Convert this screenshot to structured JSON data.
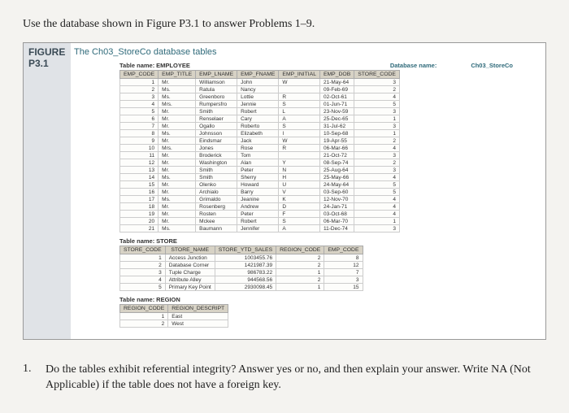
{
  "instruction": "Use the database shown in Figure P3.1 to answer Problems 1–9.",
  "figure": {
    "label1": "FIGURE",
    "label2": "P3.1",
    "title": "The Ch03_StoreCo database tables"
  },
  "dbname_label": "Database name:",
  "dbname_value": "Ch03_StoreCo",
  "employee": {
    "caption_label": "Table name:",
    "caption_value": "EMPLOYEE",
    "cols": [
      "EMP_CODE",
      "EMP_TITLE",
      "EMP_LNAME",
      "EMP_FNAME",
      "EMP_INITIAL",
      "EMP_DOB",
      "STORE_CODE"
    ],
    "rows": [
      [
        "1",
        "Mr.",
        "Williamson",
        "John",
        "W",
        "21-May-64",
        "3"
      ],
      [
        "2",
        "Ms.",
        "Ratula",
        "Nancy",
        "",
        "09-Feb-69",
        "2"
      ],
      [
        "3",
        "Ms.",
        "Greenboro",
        "Lottie",
        "R",
        "02-Oct-61",
        "4"
      ],
      [
        "4",
        "Mrs.",
        "Rumpersfro",
        "Jennie",
        "S",
        "01-Jun-71",
        "5"
      ],
      [
        "5",
        "Mr.",
        "Smith",
        "Robert",
        "L",
        "23-Nov-59",
        "3"
      ],
      [
        "6",
        "Mr.",
        "Renselaer",
        "Cary",
        "A",
        "25-Dec-65",
        "1"
      ],
      [
        "7",
        "Mr.",
        "Ogallo",
        "Roberto",
        "S",
        "31-Jul-62",
        "3"
      ],
      [
        "8",
        "Ms.",
        "Johnsson",
        "Elizabeth",
        "I",
        "10-Sep-68",
        "1"
      ],
      [
        "9",
        "Mr.",
        "Eindsmar",
        "Jack",
        "W",
        "19-Apr-55",
        "2"
      ],
      [
        "10",
        "Mrs.",
        "Jones",
        "Rose",
        "R",
        "06-Mar-66",
        "4"
      ],
      [
        "11",
        "Mr.",
        "Broderick",
        "Tom",
        "",
        "21-Oct-72",
        "3"
      ],
      [
        "12",
        "Mr.",
        "Washington",
        "Alan",
        "Y",
        "08-Sep-74",
        "2"
      ],
      [
        "13",
        "Mr.",
        "Smith",
        "Peter",
        "N",
        "25-Aug-64",
        "3"
      ],
      [
        "14",
        "Ms.",
        "Smith",
        "Sherry",
        "H",
        "25-May-66",
        "4"
      ],
      [
        "15",
        "Mr.",
        "Olenko",
        "Howard",
        "U",
        "24-May-64",
        "5"
      ],
      [
        "16",
        "Mr.",
        "Archialo",
        "Barry",
        "V",
        "03-Sep-60",
        "5"
      ],
      [
        "17",
        "Ms.",
        "Grimaldo",
        "Jeanine",
        "K",
        "12-Nov-70",
        "4"
      ],
      [
        "18",
        "Mr.",
        "Rosenberg",
        "Andrew",
        "D",
        "24-Jan-71",
        "4"
      ],
      [
        "19",
        "Mr.",
        "Rosten",
        "Peter",
        "F",
        "03-Oct-68",
        "4"
      ],
      [
        "20",
        "Mr.",
        "Mckee",
        "Robert",
        "S",
        "06-Mar-70",
        "1"
      ],
      [
        "21",
        "Ms.",
        "Baumann",
        "Jennifer",
        "A",
        "11-Dec-74",
        "3"
      ]
    ]
  },
  "store": {
    "caption_label": "Table name:",
    "caption_value": "STORE",
    "cols": [
      "STORE_CODE",
      "STORE_NAME",
      "STORE_YTD_SALES",
      "REGION_CODE",
      "EMP_CODE"
    ],
    "rows": [
      [
        "1",
        "Access Junction",
        "1003455.76",
        "2",
        "8"
      ],
      [
        "2",
        "Database Corner",
        "1421987.39",
        "2",
        "12"
      ],
      [
        "3",
        "Tuple Charge",
        "986783.22",
        "1",
        "7"
      ],
      [
        "4",
        "Attribute Alley",
        "944568.56",
        "2",
        "3"
      ],
      [
        "5",
        "Primary Key Point",
        "2930098.45",
        "1",
        "15"
      ]
    ]
  },
  "region": {
    "caption_label": "Table name:",
    "caption_value": "REGION",
    "cols": [
      "REGION_CODE",
      "REGION_DESCRIPT"
    ],
    "rows": [
      [
        "1",
        "East"
      ],
      [
        "2",
        "West"
      ]
    ]
  },
  "question": {
    "num": "1.",
    "text": "Do the tables exhibit referential integrity? Answer yes or no, and then explain your answer. Write NA (Not Applicable) if the table does not have a foreign key."
  }
}
